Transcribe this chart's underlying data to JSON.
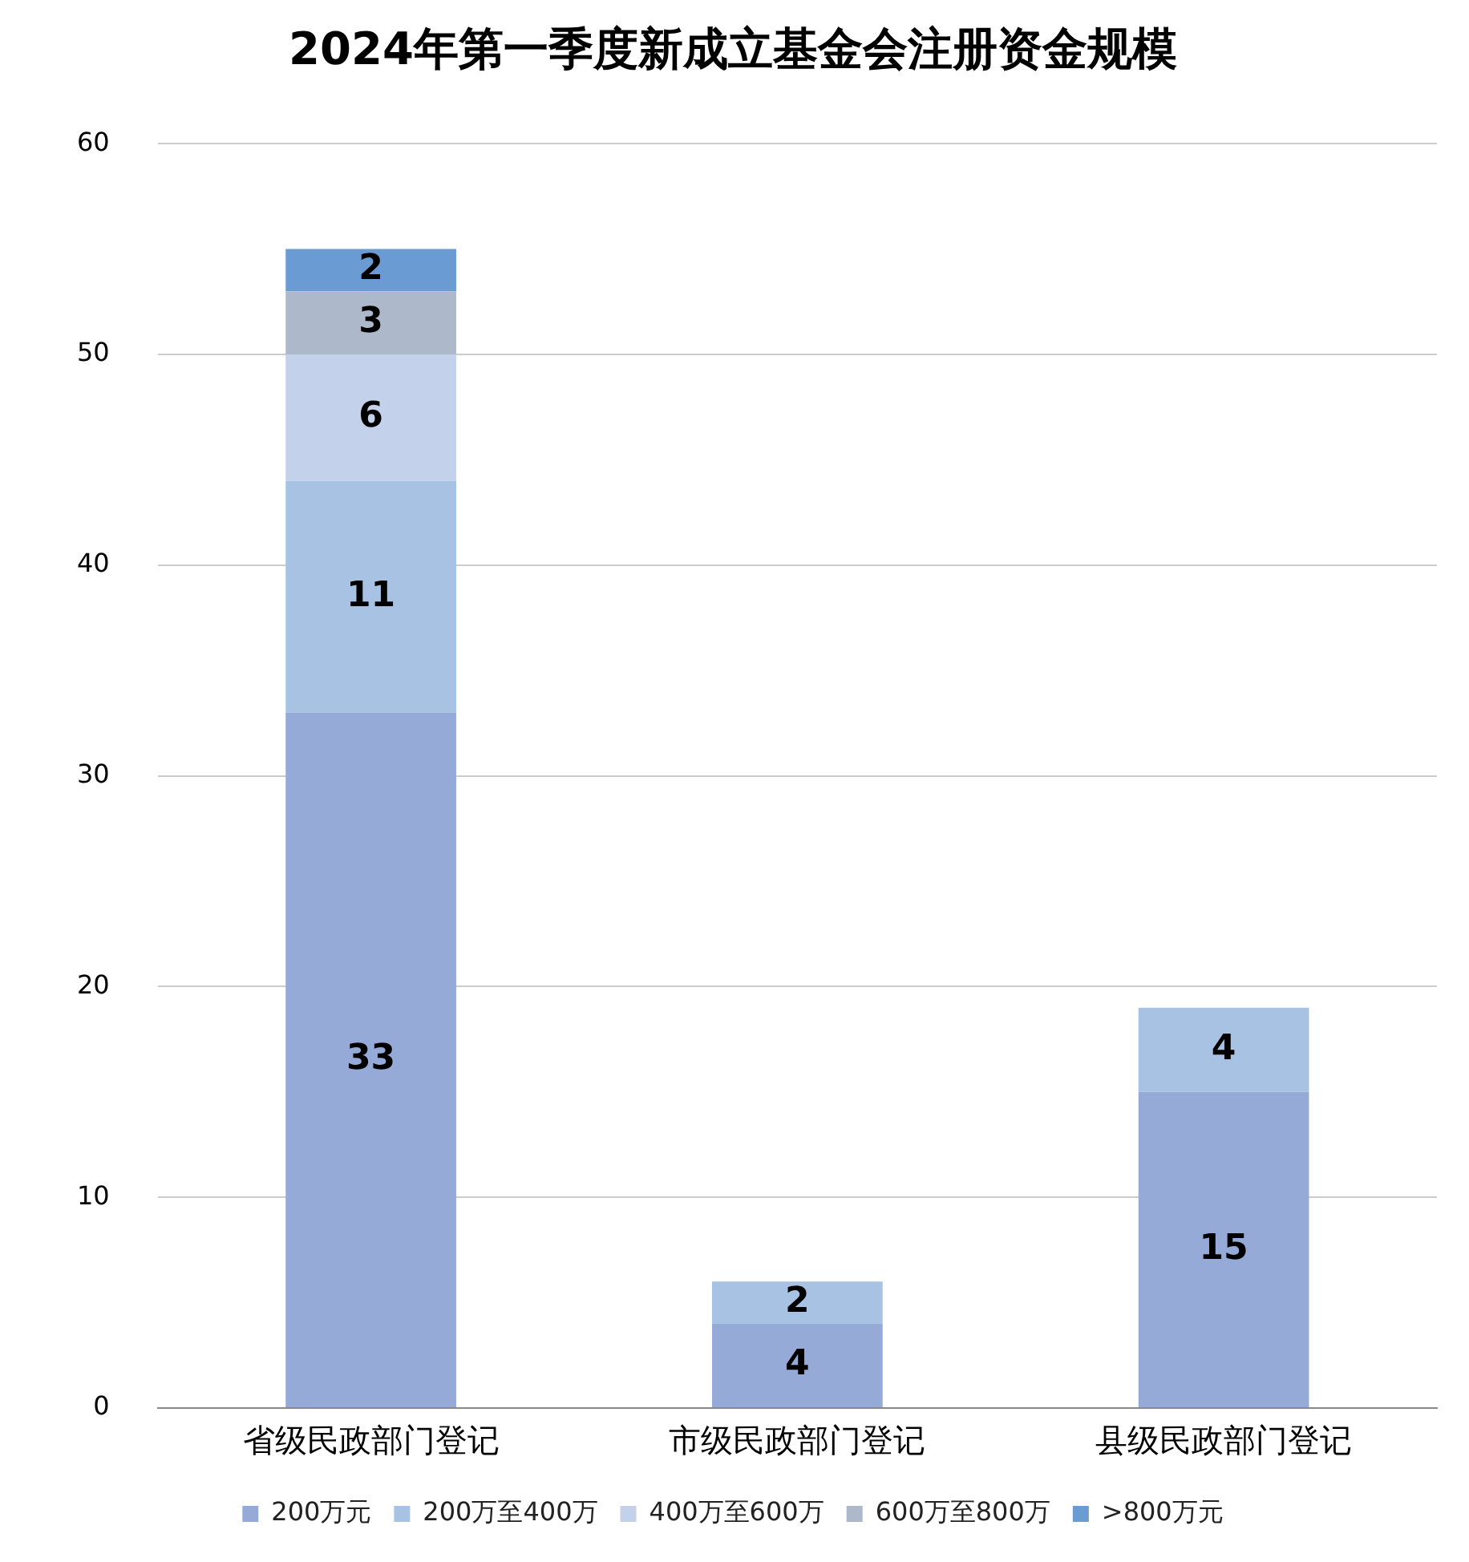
{
  "chart_data": {
    "type": "bar",
    "title": "2024年第一季度新成立基金会注册资金规模",
    "categories": [
      "省级民政部门登记",
      "市级民政部门登记",
      "县级民政部门登记"
    ],
    "stacked": true,
    "ylim": [
      0,
      60
    ],
    "yticks": [
      0,
      10,
      20,
      30,
      40,
      50,
      60
    ],
    "grid": "y",
    "legend": "bottom",
    "data_labels": true,
    "series": [
      {
        "name": "200万元",
        "color": "#96aad8",
        "values": [
          33,
          4,
          15
        ]
      },
      {
        "name": "200万至400万",
        "color": "#a7c2e3",
        "values": [
          11,
          2,
          4
        ]
      },
      {
        "name": "400万至600万",
        "color": "#c4d1ea",
        "values": [
          6,
          null,
          null
        ]
      },
      {
        "name": "600万至800万",
        "color": "#adb8ca",
        "values": [
          3,
          null,
          null
        ]
      },
      {
        "name": ">800万元",
        "color": "#6a9bd3",
        "values": [
          2,
          null,
          null
        ]
      }
    ]
  }
}
